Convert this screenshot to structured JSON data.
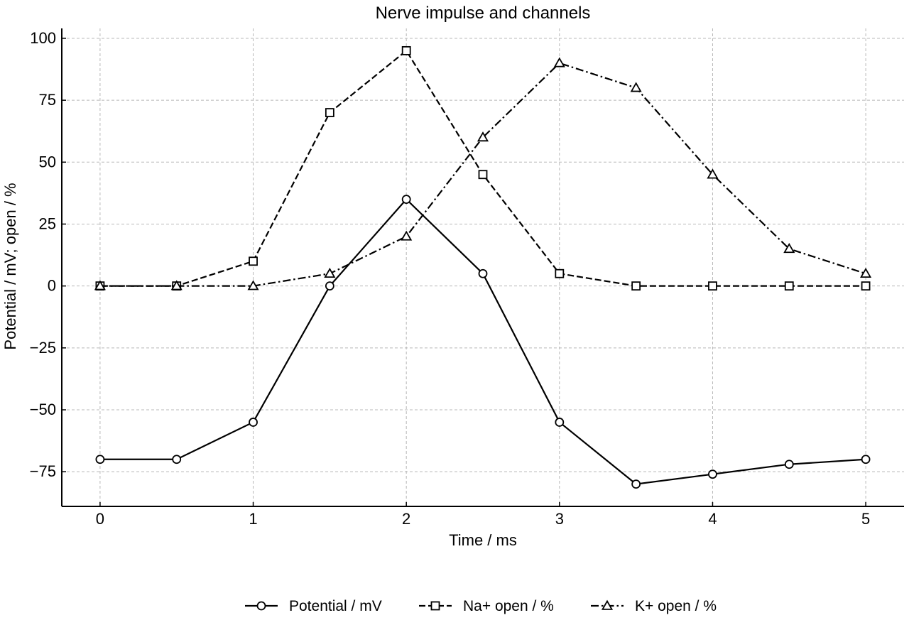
{
  "chart_data": {
    "type": "line",
    "title": "Nerve impulse and channels",
    "xlabel": "Time / ms",
    "ylabel": "Potential / mV; open / %",
    "xlim": [
      -0.25,
      5.25
    ],
    "ylim": [
      -89,
      104
    ],
    "xticks": [
      0,
      1,
      2,
      3,
      4,
      5
    ],
    "yticks": [
      -75,
      -50,
      -25,
      0,
      25,
      50,
      75,
      100
    ],
    "grid": true,
    "legend_position": "bottom-center",
    "x": [
      0,
      0.5,
      1,
      1.5,
      2,
      2.5,
      3,
      3.5,
      4,
      4.5,
      5
    ],
    "series": [
      {
        "name": "Potential / mV",
        "marker": "circle",
        "linestyle": "solid",
        "values": [
          -70,
          -70,
          -55,
          0,
          35,
          5,
          -55,
          -80,
          -76,
          -72,
          -70
        ]
      },
      {
        "name": "Na+ open / %",
        "marker": "square",
        "linestyle": "dashed",
        "values": [
          0,
          0,
          10,
          70,
          95,
          45,
          5,
          0,
          0,
          0,
          0
        ]
      },
      {
        "name": "K+ open / %",
        "marker": "triangle",
        "linestyle": "dashdot",
        "values": [
          0,
          0,
          0,
          5,
          20,
          60,
          90,
          80,
          45,
          15,
          5
        ]
      }
    ]
  }
}
